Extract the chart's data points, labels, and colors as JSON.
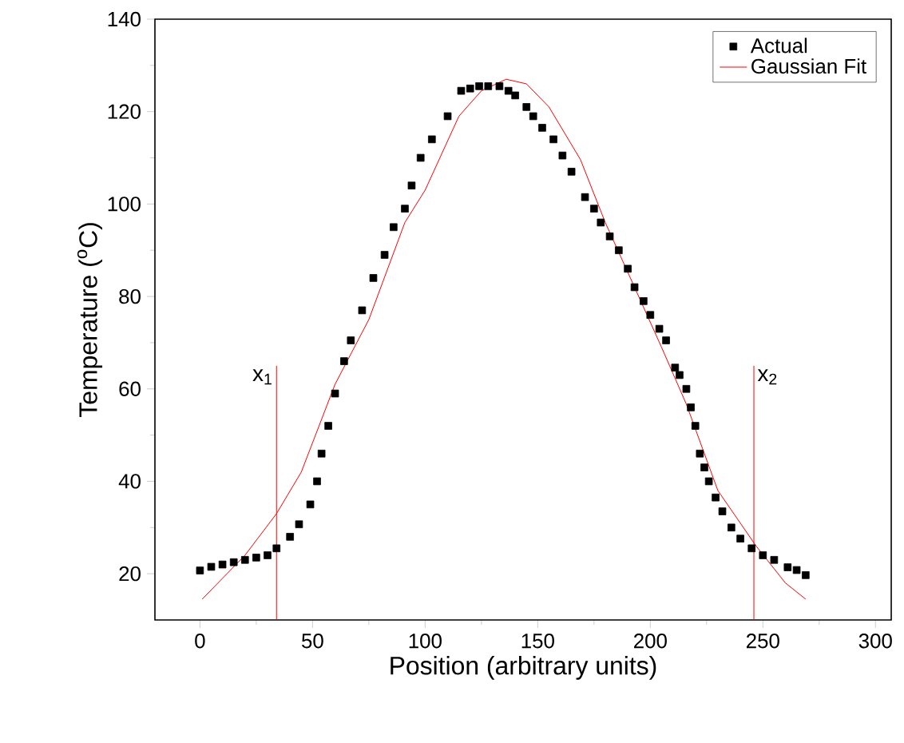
{
  "chart_data": {
    "type": "scatter",
    "xlabel": "Position (arbitrary units)",
    "ylabel": "Temperature ($^{o}$C)",
    "xlim": [
      -20,
      307
    ],
    "ylim": [
      10,
      140
    ],
    "xticks": [
      0,
      50,
      100,
      150,
      200,
      250,
      300
    ],
    "yticks": [
      20,
      40,
      60,
      80,
      100,
      120,
      140
    ],
    "legend": "top right",
    "series": [
      {
        "name": "Actual",
        "marker": "square",
        "color": "#000000",
        "x": [
          0,
          5,
          10,
          15,
          20,
          25,
          30,
          34,
          40,
          44,
          49,
          52,
          54,
          57,
          60,
          64,
          67,
          72,
          77,
          82,
          86,
          91,
          94,
          98,
          103,
          110,
          116,
          120,
          124,
          128,
          133,
          137,
          140,
          145,
          148,
          152,
          157,
          161,
          165,
          171,
          175,
          178,
          182,
          186,
          190,
          193,
          197,
          200,
          204,
          207,
          211,
          213,
          216,
          218,
          220,
          222,
          224,
          226,
          229,
          232,
          236,
          240,
          245,
          250,
          255,
          261,
          265,
          269
        ],
        "values": [
          20.7,
          21.5,
          22,
          22.5,
          23,
          23.5,
          24,
          25.5,
          28,
          30.7,
          35,
          40,
          46,
          52,
          59,
          66,
          70.5,
          77,
          84,
          89,
          95,
          99,
          104,
          110,
          114,
          119,
          124.5,
          125,
          125.5,
          125.5,
          125.5,
          124.5,
          123.5,
          121,
          119,
          116.5,
          114,
          110.5,
          107,
          101.5,
          99,
          96,
          93,
          90,
          86,
          82,
          79,
          76,
          73,
          70.5,
          64.6,
          63,
          60,
          56,
          52,
          46,
          43,
          40,
          36.5,
          33.5,
          30,
          27.6,
          25.5,
          24,
          23,
          21.4,
          20.8,
          19.7
        ]
      },
      {
        "name": "Gaussian Fit",
        "type": "line",
        "color": "#ff0000",
        "x": [
          1,
          10,
          20,
          34,
          45,
          60,
          75,
          91,
          100,
          115,
          125,
          136,
          145,
          155,
          169,
          180,
          193,
          205,
          216,
          230,
          247,
          260,
          269
        ],
        "values": [
          14.5,
          19,
          24,
          33,
          42,
          61,
          75,
          96,
          103,
          119,
          124.5,
          127,
          126,
          121,
          109.6,
          96,
          82,
          69,
          56.7,
          38,
          26,
          18,
          14.5
        ]
      },
      {
        "type": "line",
        "color": "#ff0000",
        "x": [
          34,
          34
        ],
        "values": [
          10,
          65
        ]
      },
      {
        "type": "line",
        "color": "#ff0000",
        "x": [
          246,
          246
        ],
        "values": [
          10,
          65
        ]
      }
    ],
    "annotations": [
      {
        "text": "x$_{1}$",
        "x": 34,
        "y": 65
      },
      {
        "text": "x$_{2}$",
        "x": 246,
        "y": 65
      }
    ]
  }
}
